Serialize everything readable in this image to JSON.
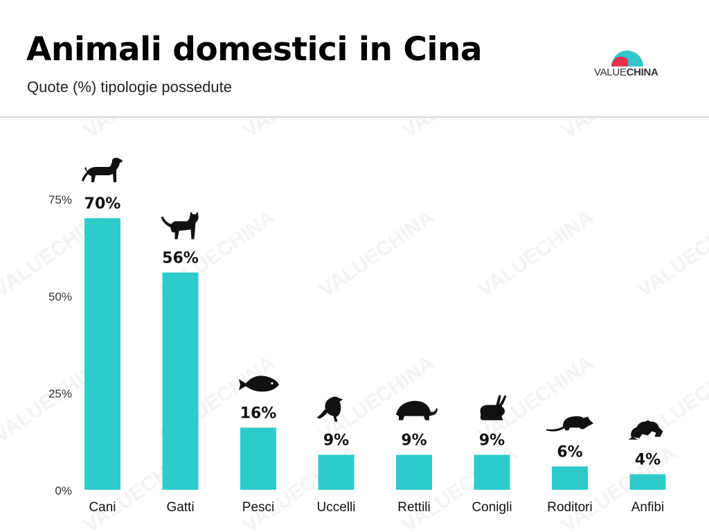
{
  "header": {
    "title": "Animali domestici in Cina",
    "subtitle": "Quote (%) tipologie possedute"
  },
  "logo": {
    "text_light": "VALUE",
    "text_bold": "CHINA",
    "watermark_text": "VALUECHINA",
    "colors": {
      "teal": "#33c7c7",
      "red": "#e8314f"
    }
  },
  "chart_data": {
    "type": "bar",
    "title": "Animali domestici in Cina",
    "subtitle": "Quote (%) tipologie possedute",
    "categories": [
      "Cani",
      "Gatti",
      "Pesci",
      "Uccelli",
      "Rettili",
      "Conigli",
      "Roditori",
      "Anfibi"
    ],
    "values": [
      70,
      56,
      16,
      9,
      9,
      9,
      6,
      4
    ],
    "data_labels": [
      "70%",
      "56%",
      "16%",
      "9%",
      "9%",
      "9%",
      "6%",
      "4%"
    ],
    "icons": [
      "dog-icon",
      "cat-icon",
      "fish-icon",
      "bird-icon",
      "turtle-icon",
      "rabbit-icon",
      "mouse-icon",
      "frog-icon"
    ],
    "y_ticks": [
      0,
      25,
      50,
      75
    ],
    "y_tick_labels": [
      "0%",
      "25%",
      "50%",
      "75%"
    ],
    "ylim": [
      0,
      75
    ],
    "xlabel": "",
    "ylabel": "",
    "grid": false,
    "bar_color": "#2ecbcb"
  }
}
